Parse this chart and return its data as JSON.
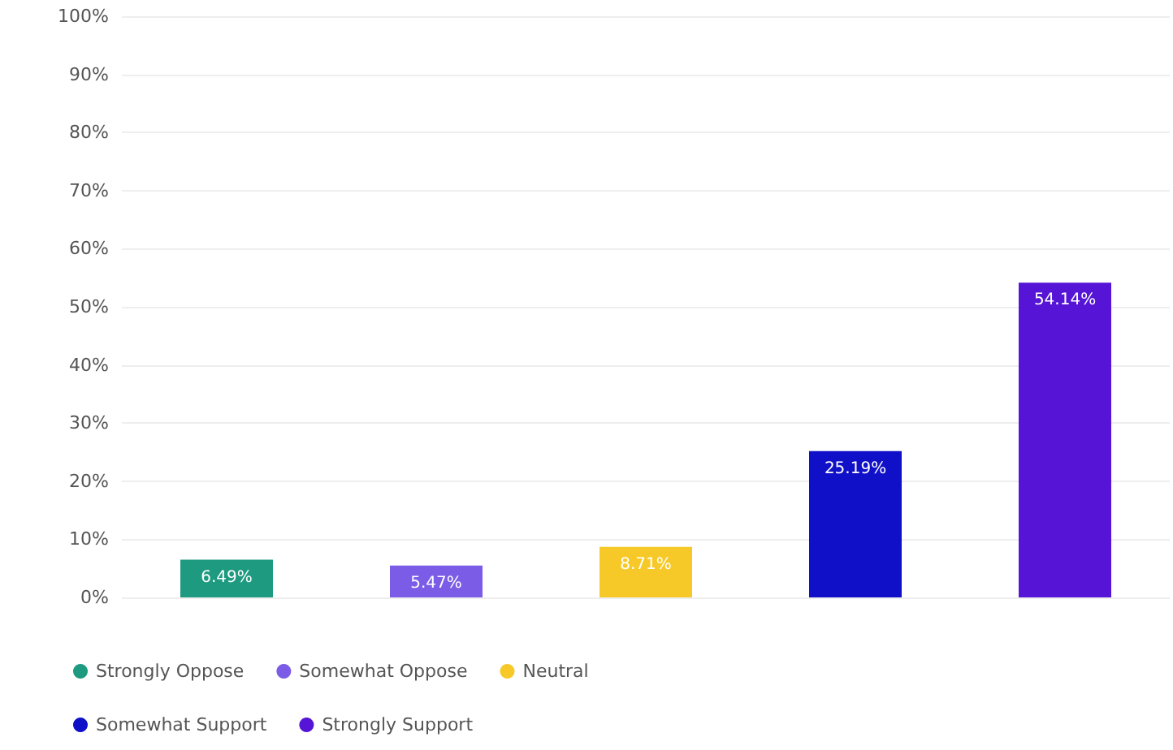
{
  "chart_data": {
    "type": "bar",
    "categories": [
      null,
      null,
      null,
      null,
      null
    ],
    "series": [
      {
        "name": "Strongly Oppose",
        "color": "#1e9a80",
        "values": [
          6.49,
          null,
          null,
          null,
          null
        ],
        "value_labels": [
          "6.49%",
          null,
          null,
          null,
          null
        ]
      },
      {
        "name": "Somewhat Oppose",
        "color": "#7b5ce6",
        "values": [
          null,
          5.47,
          null,
          null,
          null
        ],
        "value_labels": [
          null,
          "5.47%",
          null,
          null,
          null
        ]
      },
      {
        "name": "Neutral",
        "color": "#f7c928",
        "values": [
          null,
          null,
          8.71,
          null,
          null
        ],
        "value_labels": [
          null,
          null,
          "8.71%",
          null,
          null
        ]
      },
      {
        "name": "Somewhat Support",
        "color": "#1010c8",
        "values": [
          null,
          null,
          null,
          25.19,
          null
        ],
        "value_labels": [
          null,
          null,
          null,
          "25.19%",
          null
        ]
      },
      {
        "name": "Strongly Support",
        "color": "#5514d6",
        "values": [
          null,
          null,
          null,
          null,
          54.14
        ],
        "value_labels": [
          null,
          null,
          null,
          null,
          "54.14%"
        ]
      }
    ],
    "ylim": [
      0,
      100
    ],
    "yticks": [
      {
        "value": 0,
        "label": "0%"
      },
      {
        "value": 10,
        "label": "10%"
      },
      {
        "value": 20,
        "label": "20%"
      },
      {
        "value": 30,
        "label": "30%"
      },
      {
        "value": 40,
        "label": "40%"
      },
      {
        "value": 50,
        "label": "50%"
      },
      {
        "value": 60,
        "label": "60%"
      },
      {
        "value": 70,
        "label": "70%"
      },
      {
        "value": 80,
        "label": "80%"
      },
      {
        "value": 90,
        "label": "90%"
      },
      {
        "value": 100,
        "label": "100%"
      }
    ],
    "grid": "y",
    "legend": "bottom"
  }
}
